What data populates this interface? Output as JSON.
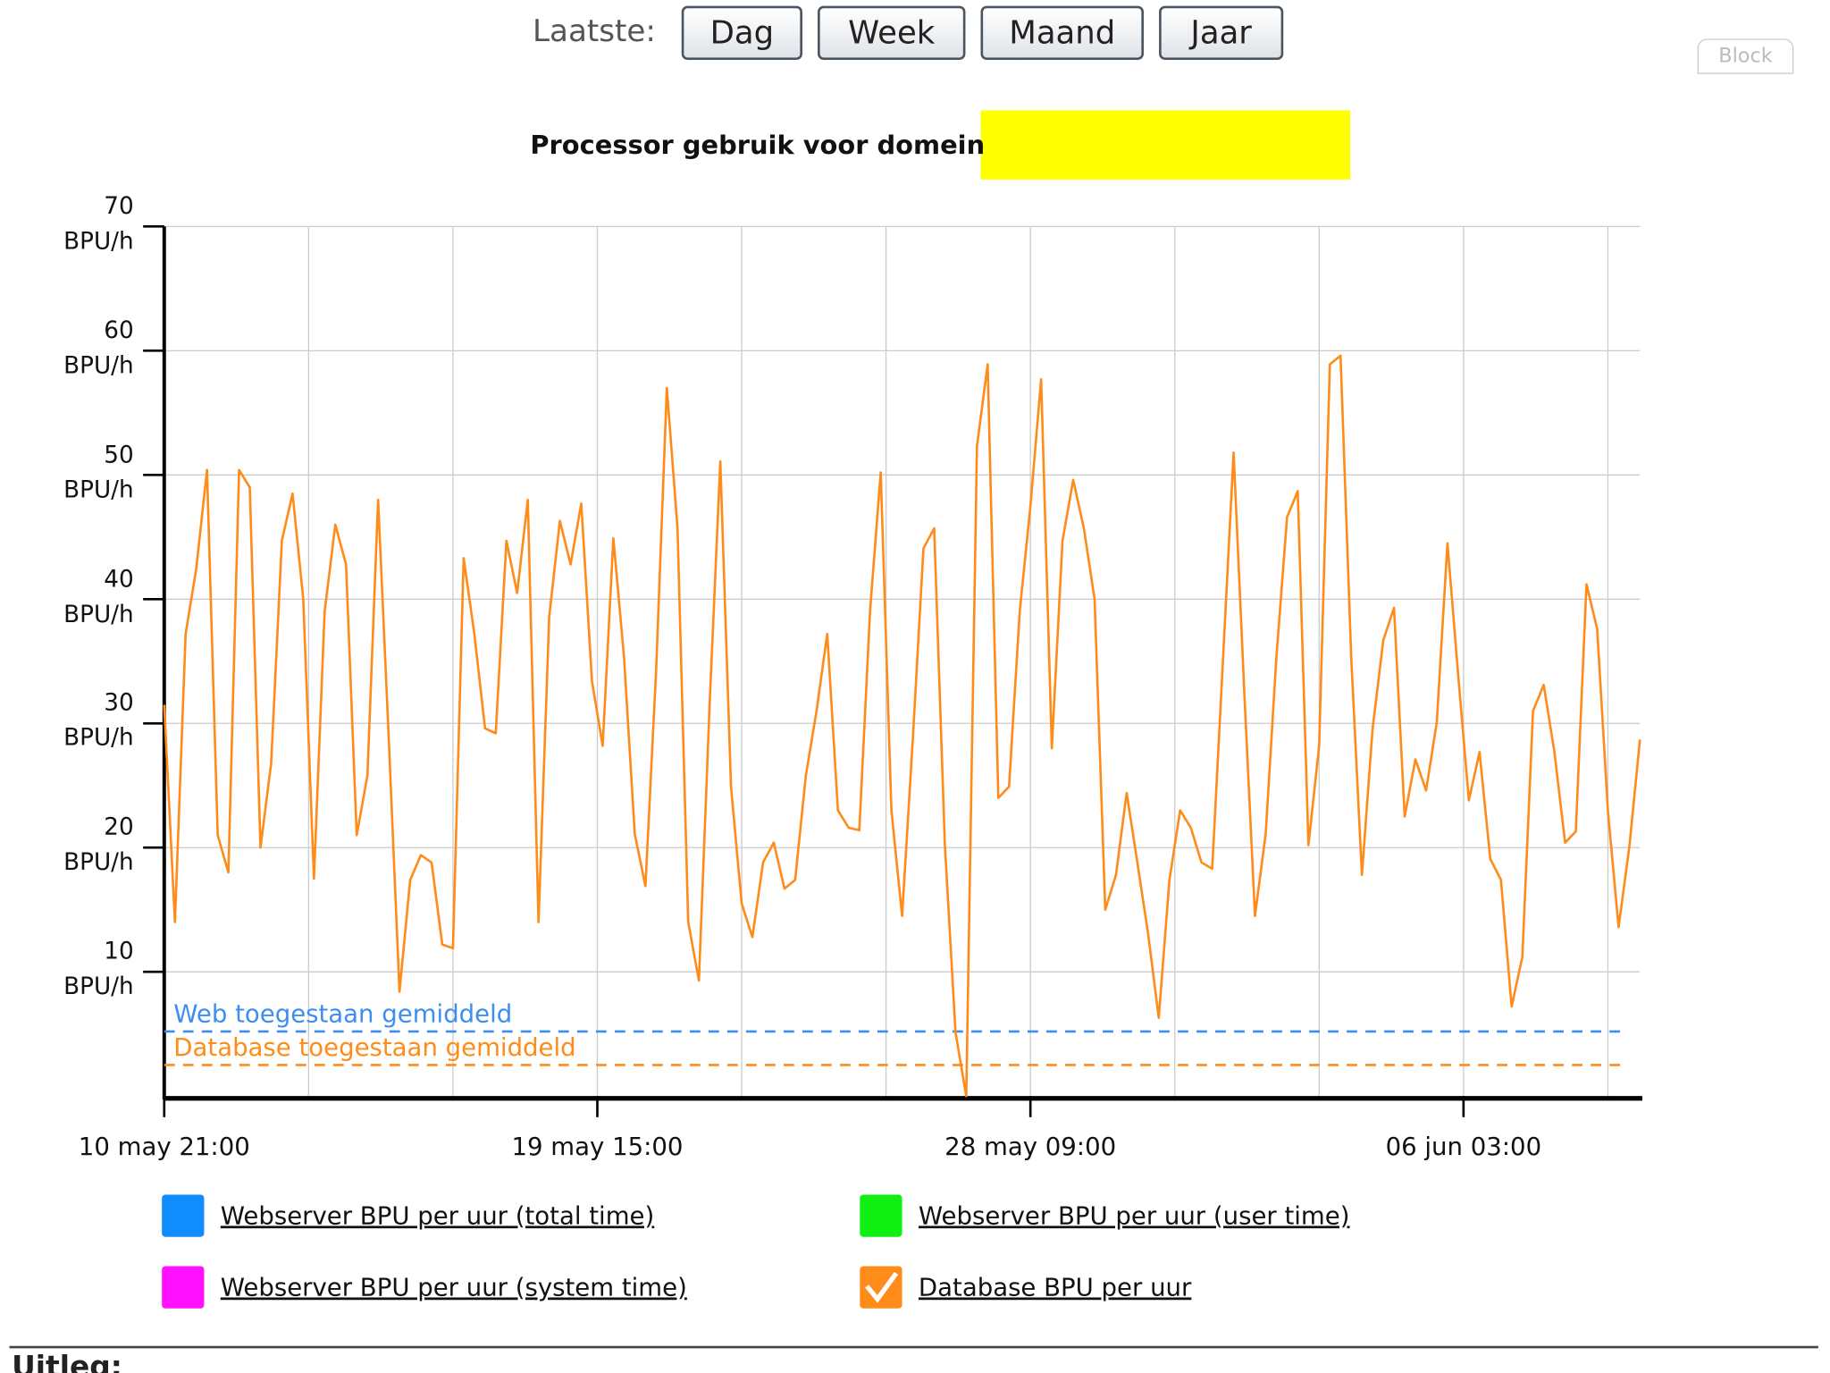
{
  "toolbar": {
    "label": "Laatste:",
    "buttons": [
      "Dag",
      "Week",
      "Maand",
      "Jaar"
    ],
    "side_button": "Block"
  },
  "chart_data": {
    "type": "line",
    "title": "Processor gebruik voor domein",
    "xlim": [
      0,
      138
    ],
    "xticks": [
      {
        "value": 0,
        "label": "10 may 21:00"
      },
      {
        "value": 40.5,
        "label": "19 may 15:00"
      },
      {
        "value": 81,
        "label": "28 may 09:00"
      },
      {
        "value": 121.5,
        "label": "06 jun 03:00"
      }
    ],
    "xgrid": [
      0,
      13.5,
      27,
      40.5,
      54,
      67.5,
      81,
      94.5,
      108,
      121.5,
      135
    ],
    "ylim": [
      0,
      70
    ],
    "yticks": [
      {
        "value": 10,
        "label": "10 BPU/h"
      },
      {
        "value": 20,
        "label": "20 BPU/h"
      },
      {
        "value": 30,
        "label": "30 BPU/h"
      },
      {
        "value": 40,
        "label": "40 BPU/h"
      },
      {
        "value": 50,
        "label": "50 BPU/h"
      },
      {
        "value": 60,
        "label": "60 BPU/h"
      },
      {
        "value": 70,
        "label": "70 BPU/h"
      }
    ],
    "grid": true,
    "series": [
      {
        "name": "Database BPU per uur",
        "color": "#ff8c1a",
        "values": [
          31.5,
          14,
          37.2,
          42.5,
          50.4,
          21,
          18,
          50.4,
          49,
          20,
          26.8,
          44.7,
          48.5,
          40,
          17.5,
          39,
          46,
          42.8,
          21,
          25.8,
          48,
          28.7,
          8.4,
          17.4,
          19.4,
          18.8,
          12.2,
          11.9,
          43.3,
          37.2,
          29.6,
          29.2,
          44.7,
          40.5,
          48,
          14,
          38.6,
          46.3,
          42.8,
          47.7,
          33.4,
          28.2,
          44.9,
          35.3,
          21.1,
          16.9,
          34.3,
          57,
          45.7,
          14,
          9.3,
          31.5,
          51.1,
          24.9,
          15.5,
          12.8,
          18.8,
          20.4,
          16.7,
          17.4,
          25.8,
          31,
          37.2,
          23,
          21.6,
          21.4,
          39,
          50.2,
          23,
          14.5,
          28.7,
          44.1,
          45.7,
          20.2,
          5.1,
          0,
          52.3,
          58.9,
          24,
          24.9,
          39,
          47.5,
          57.7,
          28,
          44.7,
          49.6,
          45.7,
          40,
          15,
          17.8,
          24.4,
          18.8,
          13.1,
          6.3,
          17.4,
          23,
          21.6,
          18.8,
          18.3,
          35,
          51.8,
          32.5,
          14.5,
          21.1,
          35.3,
          46.6,
          48.7,
          20.2,
          28.2,
          58.9,
          59.6,
          35.3,
          17.8,
          29.6,
          36.7,
          39.3,
          22.5,
          27.1,
          24.6,
          30.1,
          44.5,
          33.9,
          23.8,
          27.7,
          19.1,
          17.4,
          7.2,
          11.2,
          31,
          33.1,
          27.7,
          20.4,
          21.3,
          41.2,
          37.6,
          23,
          13.6,
          20,
          28.7
        ]
      }
    ],
    "reference_lines": [
      {
        "label": "Web toegestaan gemiddeld",
        "value": 5.2,
        "color": "#3d8ef0"
      },
      {
        "label": "Database toegestaan gemiddeld",
        "value": 2.5,
        "color": "#ff8c1a"
      }
    ],
    "other_legend": [
      {
        "name": "Webserver BPU per uur (total time)",
        "color": "#118cff"
      },
      {
        "name": "Webserver BPU per uur (user time)",
        "color": "#11ee11"
      },
      {
        "name": "Webserver BPU per uur (system time)",
        "color": "#ff11ff"
      }
    ]
  },
  "footer": {
    "heading": "Uitleg:"
  }
}
